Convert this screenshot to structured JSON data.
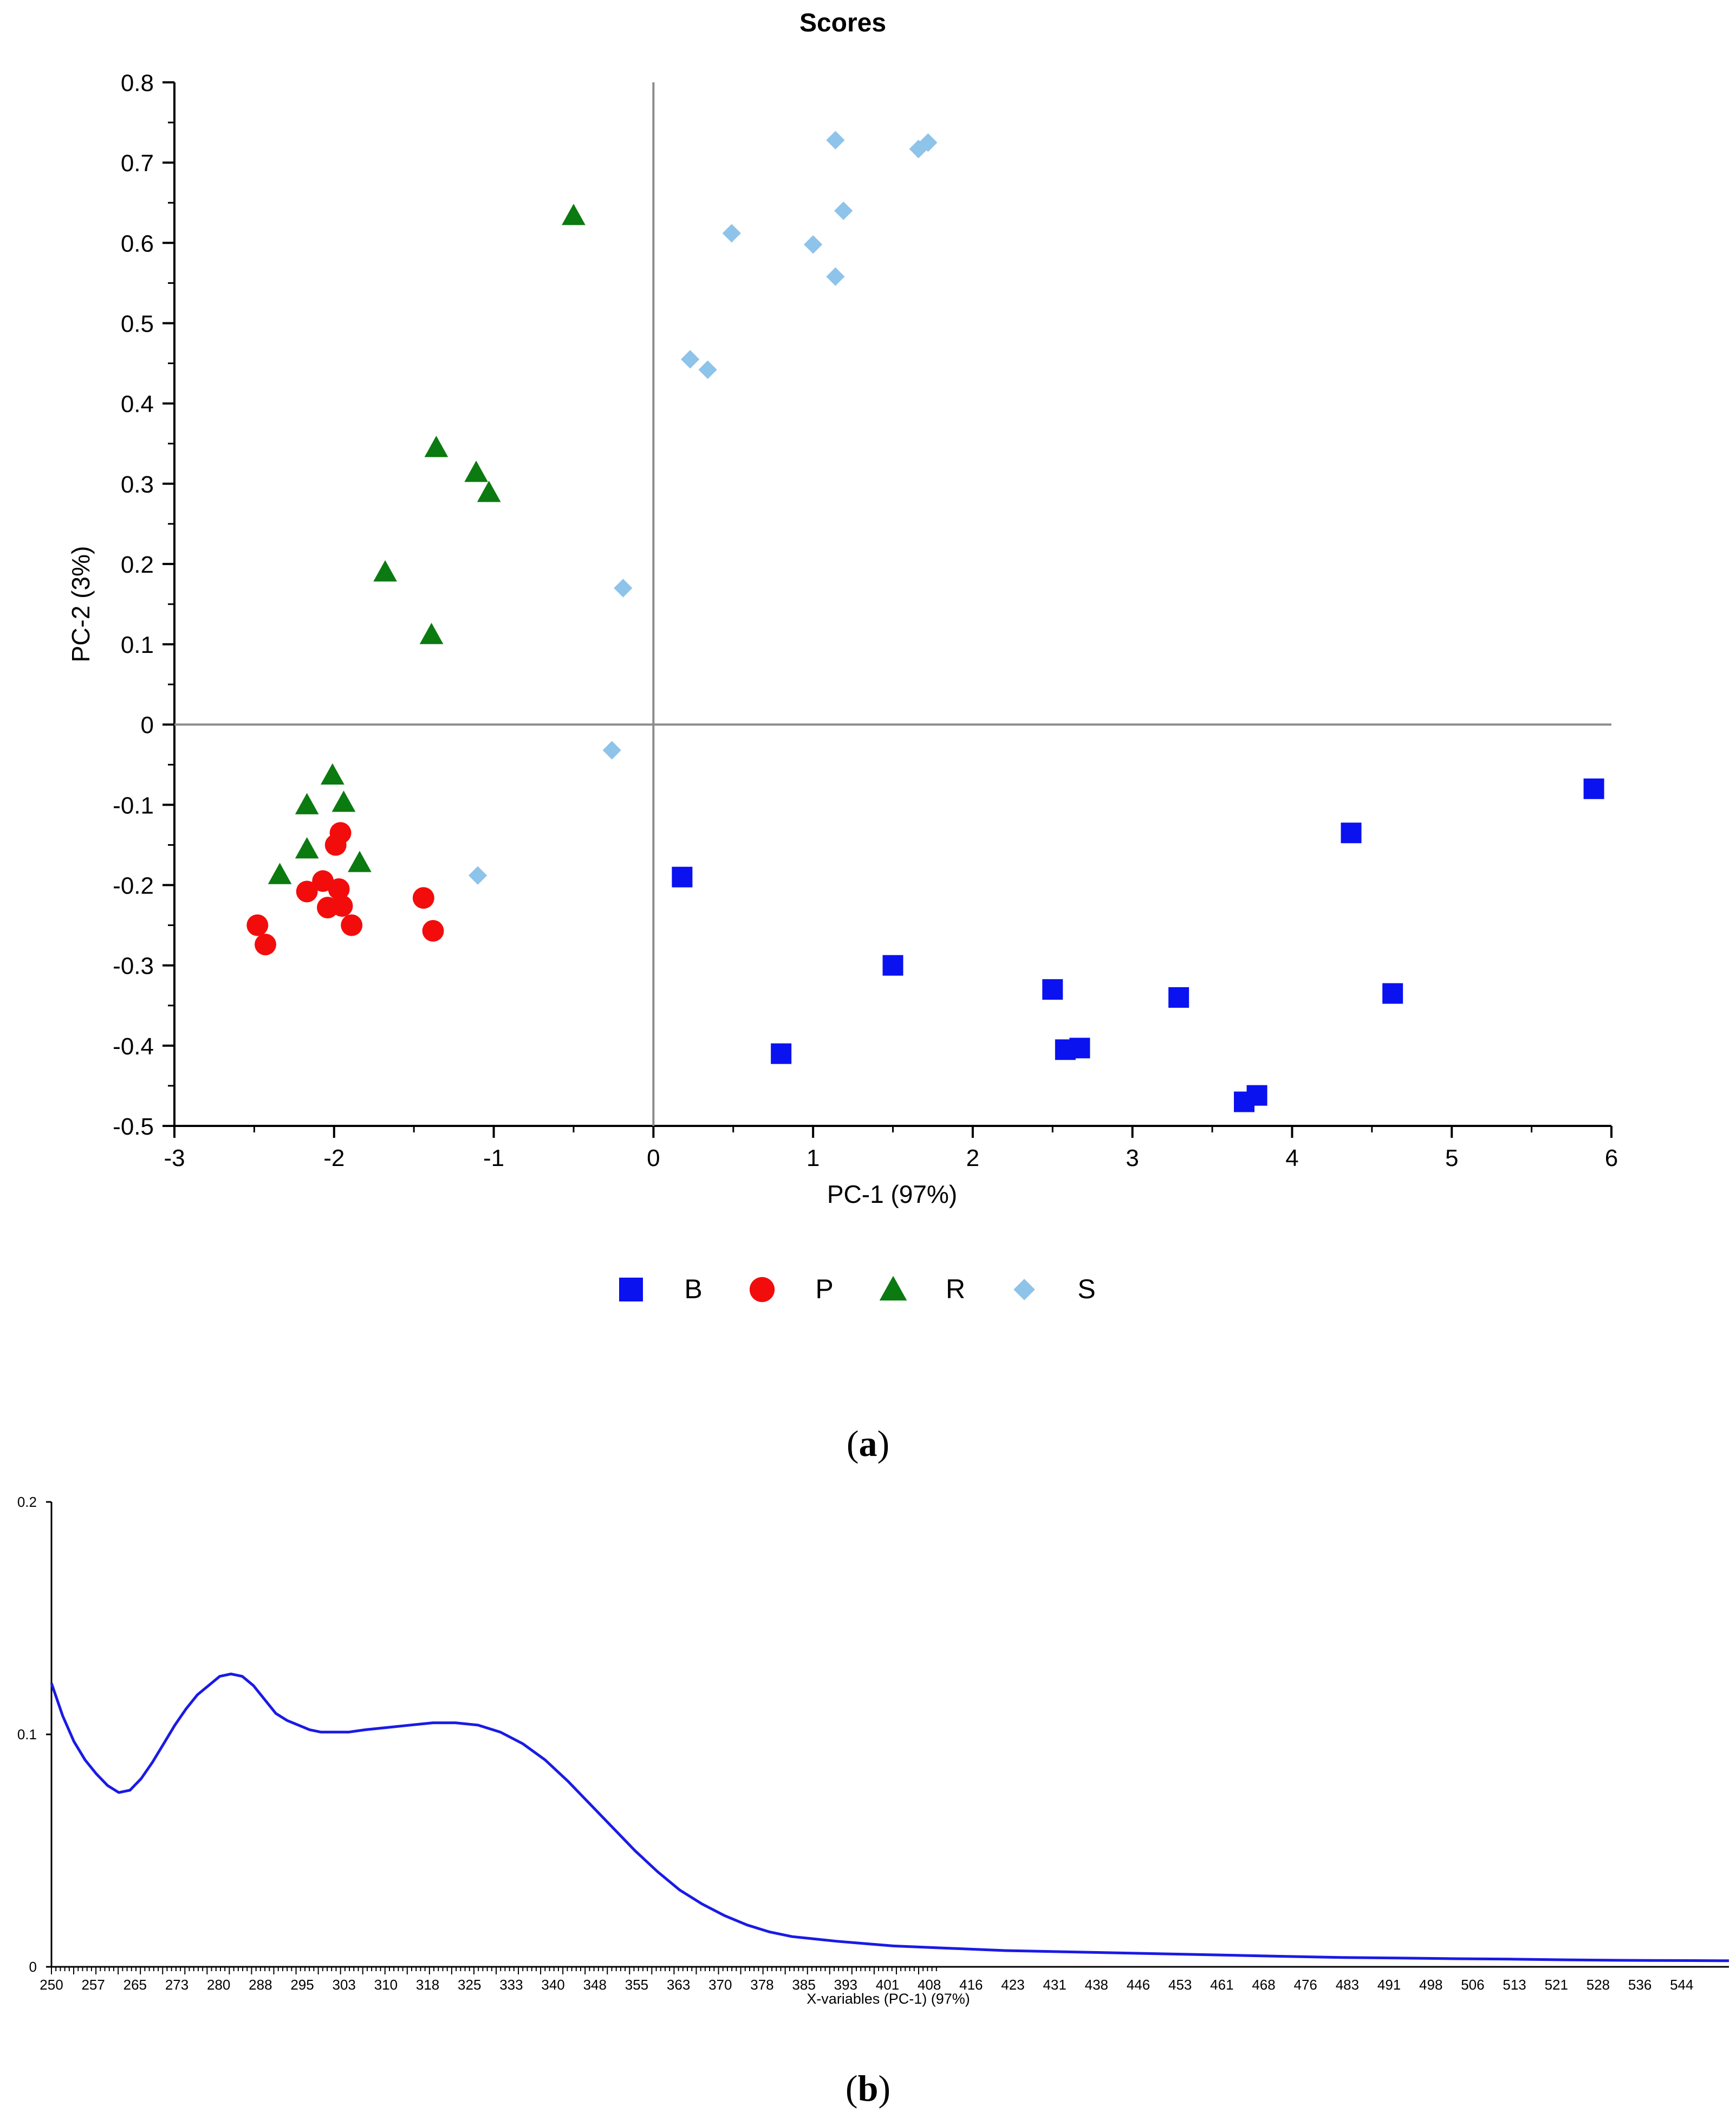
{
  "panels": {
    "a": {
      "open": "(",
      "letter": "a",
      "close": ")"
    },
    "b": {
      "open": "(",
      "letter": "b",
      "close": ")"
    }
  },
  "chart_data": [
    {
      "type": "scatter",
      "title": "Scores",
      "xlabel": "PC-1 (97%)",
      "ylabel": "PC-2 (3%)",
      "xlim": [
        -3,
        6
      ],
      "ylim": [
        -0.5,
        0.8
      ],
      "xticks": [
        -3,
        -2,
        -1,
        0,
        1,
        2,
        3,
        4,
        5,
        6
      ],
      "yticks": [
        -0.5,
        -0.4,
        -0.3,
        -0.2,
        -0.1,
        0,
        0.1,
        0.2,
        0.3,
        0.4,
        0.5,
        0.6,
        0.7,
        0.8
      ],
      "zero_lines": true,
      "grid": false,
      "legend_position": "bottom-center",
      "series": [
        {
          "name": "B",
          "marker": "square",
          "color": "#0a12f0",
          "points": [
            [
              0.18,
              -0.19
            ],
            [
              0.8,
              -0.41
            ],
            [
              1.5,
              -0.3
            ],
            [
              2.5,
              -0.33
            ],
            [
              2.58,
              -0.405
            ],
            [
              2.67,
              -0.403
            ],
            [
              3.29,
              -0.34
            ],
            [
              3.7,
              -0.47
            ],
            [
              3.78,
              -0.462
            ],
            [
              4.37,
              -0.135
            ],
            [
              4.63,
              -0.335
            ],
            [
              5.89,
              -0.08
            ]
          ]
        },
        {
          "name": "P",
          "marker": "circle",
          "color": "#f20c0c",
          "points": [
            [
              -2.48,
              -0.25
            ],
            [
              -2.43,
              -0.274
            ],
            [
              -2.17,
              -0.208
            ],
            [
              -2.07,
              -0.195
            ],
            [
              -2.04,
              -0.228
            ],
            [
              -1.99,
              -0.15
            ],
            [
              -1.96,
              -0.135
            ],
            [
              -1.97,
              -0.205
            ],
            [
              -1.95,
              -0.226
            ],
            [
              -1.89,
              -0.25
            ],
            [
              -1.44,
              -0.216
            ],
            [
              -1.38,
              -0.257
            ]
          ]
        },
        {
          "name": "R",
          "marker": "triangle",
          "color": "#0b7a10",
          "points": [
            [
              -2.34,
              -0.187
            ],
            [
              -2.17,
              -0.155
            ],
            [
              -2.17,
              -0.1
            ],
            [
              -2.01,
              -0.063
            ],
            [
              -1.94,
              -0.097
            ],
            [
              -1.84,
              -0.172
            ],
            [
              -1.68,
              0.19
            ],
            [
              -1.39,
              0.112
            ],
            [
              -1.36,
              0.345
            ],
            [
              -1.11,
              0.314
            ],
            [
              -1.03,
              0.289
            ],
            [
              -0.5,
              0.634
            ]
          ]
        },
        {
          "name": "S",
          "marker": "diamond",
          "color": "#8ec3ea",
          "points": [
            [
              -1.1,
              -0.188
            ],
            [
              -0.26,
              -0.032
            ],
            [
              -0.19,
              0.17
            ],
            [
              0.23,
              0.455
            ],
            [
              0.34,
              0.442
            ],
            [
              0.49,
              0.612
            ],
            [
              1.0,
              0.598
            ],
            [
              1.14,
              0.558
            ],
            [
              1.14,
              0.728
            ],
            [
              1.19,
              0.64
            ],
            [
              1.66,
              0.717
            ],
            [
              1.72,
              0.725
            ]
          ]
        }
      ]
    },
    {
      "type": "line",
      "title": "",
      "xlabel": "X-variables (PC-1) (97%)",
      "ylabel": "",
      "xlim": [
        250,
        549
      ],
      "ylim": [
        0,
        0.2
      ],
      "yticks": [
        0,
        0.1,
        0.2
      ],
      "xtick_labels": [
        "250",
        "257",
        "265",
        "273",
        "280",
        "288",
        "295",
        "303",
        "310",
        "318",
        "325",
        "333",
        "340",
        "348",
        "355",
        "363",
        "370",
        "378",
        "385",
        "393",
        "401",
        "408",
        "416",
        "423",
        "431",
        "438",
        "446",
        "453",
        "461",
        "468",
        "476",
        "483",
        "491",
        "498",
        "506",
        "513",
        "521",
        "528",
        "536",
        "544"
      ],
      "grid": false,
      "color": "#1a1ae6",
      "series": [
        {
          "x": [
            250,
            252,
            254,
            256,
            258,
            260,
            262,
            264,
            266,
            268,
            270,
            272,
            274,
            276,
            278,
            280,
            282,
            284,
            286,
            288,
            290,
            292,
            294,
            296,
            298,
            300,
            303,
            306,
            310,
            314,
            318,
            322,
            326,
            330,
            334,
            338,
            342,
            346,
            350,
            354,
            358,
            362,
            366,
            370,
            374,
            378,
            382,
            386,
            390,
            395,
            400,
            410,
            420,
            430,
            440,
            450,
            460,
            470,
            480,
            490,
            500,
            510,
            520,
            530,
            540,
            549
          ],
          "y": [
            0.122,
            0.108,
            0.097,
            0.089,
            0.083,
            0.078,
            0.075,
            0.076,
            0.081,
            0.088,
            0.096,
            0.104,
            0.111,
            0.117,
            0.121,
            0.125,
            0.126,
            0.125,
            0.121,
            0.115,
            0.109,
            0.106,
            0.104,
            0.102,
            0.101,
            0.101,
            0.101,
            0.102,
            0.103,
            0.104,
            0.105,
            0.105,
            0.104,
            0.101,
            0.096,
            0.089,
            0.08,
            0.07,
            0.06,
            0.05,
            0.041,
            0.033,
            0.027,
            0.022,
            0.018,
            0.015,
            0.013,
            0.012,
            0.011,
            0.01,
            0.009,
            0.008,
            0.007,
            0.0065,
            0.006,
            0.0055,
            0.005,
            0.0045,
            0.004,
            0.0038,
            0.0035,
            0.0033,
            0.003,
            0.0028,
            0.0027,
            0.0026
          ]
        }
      ]
    }
  ]
}
